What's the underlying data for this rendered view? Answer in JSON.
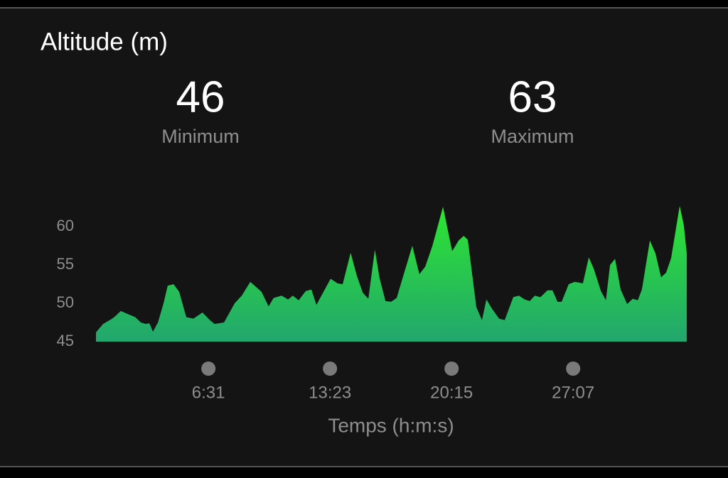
{
  "title": "Altitude (m)",
  "stats": [
    {
      "value": 46,
      "label": "Minimum"
    },
    {
      "value": 63,
      "label": "Maximum"
    }
  ],
  "chart_data": {
    "type": "area",
    "x_label": "Temps (h:m:s)",
    "x": [
      10,
      34,
      65,
      75,
      94,
      118,
      143,
      162,
      179,
      191,
      203,
      220,
      239,
      253,
      273,
      292,
      316,
      340,
      371,
      396,
      412,
      444,
      480,
      504,
      533,
      571,
      595,
      612,
      639,
      661,
      677,
      697,
      721,
      740,
      757,
      781,
      805,
      829,
      846,
      873,
      894,
      914,
      933,
      955,
      971,
      991,
      1010,
      1029,
      1053,
      1082,
      1106,
      1126,
      1150,
      1186,
      1217,
      1239,
      1256,
      1270,
      1299,
      1318,
      1333,
      1352,
      1376,
      1395,
      1424,
      1443,
      1463,
      1480,
      1497,
      1516,
      1540,
      1557,
      1574,
      1588,
      1612,
      1632,
      1648,
      1660,
      1680,
      1697,
      1721,
      1738,
      1752,
      1769,
      1788,
      1810,
      1829,
      1846,
      1860,
      1887,
      1906,
      1925,
      1942,
      1959,
      1988,
      2002,
      2012
    ],
    "series": [
      {
        "gradient": [
          "#2ee630",
          "#22a66e"
        ],
        "values": [
          46.2,
          47.3,
          48,
          48.3,
          49,
          48.6,
          48.2,
          47.5,
          47.3,
          47.4,
          46.3,
          47.5,
          50,
          52.3,
          52.5,
          51.5,
          48.2,
          48,
          48.8,
          47.8,
          47.3,
          47.5,
          50,
          51,
          52.8,
          51.5,
          49.6,
          50.7,
          51,
          50.5,
          51,
          50.4,
          51.6,
          51.8,
          49.8,
          51.5,
          53.2,
          52.6,
          52.5,
          56.6,
          53.6,
          51.4,
          50.6,
          57,
          53.3,
          50.3,
          50.2,
          50.7,
          53.8,
          57.5,
          53.8,
          54.8,
          57.5,
          62.6,
          56.8,
          58.2,
          58.8,
          58.3,
          49.5,
          47.8,
          50.5,
          49.3,
          48,
          47.8,
          50.8,
          51,
          50.5,
          50.3,
          51,
          50.8,
          51.7,
          51.7,
          50.2,
          50.2,
          52.5,
          52.8,
          52.7,
          52.6,
          56,
          54.5,
          51.6,
          50.4,
          55,
          55.8,
          51.8,
          49.9,
          50.6,
          50.4,
          51.8,
          58.2,
          56.5,
          53.4,
          54,
          55.9,
          62.7,
          60.2,
          56.5
        ]
      }
    ],
    "xlim": [
      10,
      2012
    ],
    "xticks": [
      {
        "value": 391,
        "label": "6:31"
      },
      {
        "value": 803,
        "label": "13:23"
      },
      {
        "value": 1215,
        "label": "20:15"
      },
      {
        "value": 1627,
        "label": "27:07"
      }
    ],
    "ylim": [
      45,
      64
    ],
    "yticks": [
      45,
      50,
      55,
      60
    ]
  }
}
